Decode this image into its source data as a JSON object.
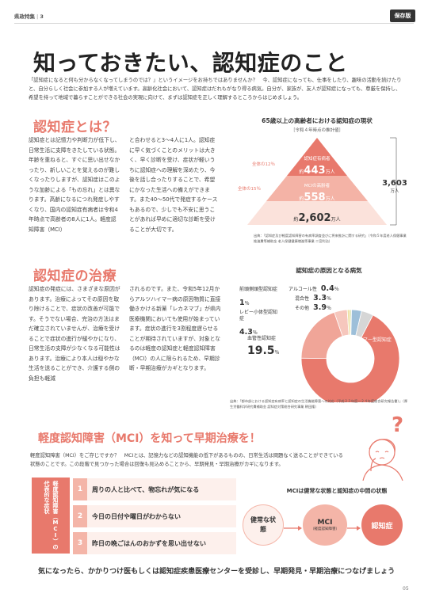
{
  "header": {
    "section": "県政特集",
    "number": "3",
    "badge": "保存版"
  },
  "title": "知っておきたい、認知症のこと",
  "intro": "「認知症になると何も分からなくなってしまうのでは？」というイメージをお持ちではありませんか？　今、認知症になっても、仕事をしたり、趣味の活動を続けたりと、自分らしく社会に参加する人が増えています。高齢化社会において、認知症はだれもがなり得る病気。自分が、家族が、友人が認知症になっても、尊厳を保持し、希望を持って地域で暮らすことができる社会の実現に向けて、まずは認知症を正しく理解するところからはじめましょう。",
  "what": {
    "heading": "認知症とは？",
    "col1": "認知症とは記憶力や判断力が低下し、日常生活に支障をきたしている状態。年齢を重ねると、すぐに思い出せなかったり、新しいことを覚えるのが難しくなったりしますが、認知症はこのような加齢による「もの忘れ」とは異なります。高齢になるにつれ発症しやすくなり、国内の認知症有病者は令和4年時点で高齢者の8人に1人。軽度認知障害（MCI）",
    "col2": "と合わせると3〜4人に1人。認知症に早く気づくことのメリットは大きく、早く診断を受け、症状が軽いうちに認知症への理解を深めたり、今後を話し合ったりすることで、希望にかなった生活への備えができます。また40〜50代で発症するケースもあるので、少しでも不安に思うことがあれば早めに適切な診断を受けることが大切です。"
  },
  "pyramid": {
    "title": "65歳以上の高齢者における認知症の現状",
    "subtitle": "［令和４年時点の推計値］",
    "top_pct": "全体の12％",
    "mid_pct": "全体の15％",
    "tier1_label": "認知症有病者",
    "tier1_pre": "約",
    "tier1_value": "443",
    "tier1_unit": "万人",
    "tier2_label": "MCIの高齢者",
    "tier2_pre": "約",
    "tier2_value": "558",
    "tier2_unit": "万人",
    "tier3_pre": "約",
    "tier3_value": "2,602",
    "tier3_unit": "万人",
    "total_value": "3,603",
    "total_unit": "万人",
    "source": "出典：「認知症及び軽度認知障害の有病率調査並びに将来推計に関する研究」（令和５年度老人保健事業推進費等補助金 老人保健健康増進等事業 二宮利治）"
  },
  "treatment": {
    "heading": "認知症の治療",
    "col1": "認知症の発症には、さまざまな原因があります。治療によってその原因を取り除けることで、症状の改善が可能です。そうでない場合、完治の方法はまだ確立されていませんが、治療を受けることで症状の進行が緩やかになり、日常生活の支障が少なくなる可能性はあります。治療により本人は穏やかな生活を送ることができ、介護する側の負担も軽減",
    "col2": "されるのです。また、令和5年12月からアルツハイマー病の原因物質に直接働きかける新薬「レカネマブ」が県内医療機関においても使用が始まっています。症状の進行を3割程度遅らせることが期待されていますが、対象となるのは軽度の認知症と軽度認知障害（MCI）の人に限られるため、早期診断・早期治療がカギとなります。"
  },
  "chart_data": {
    "type": "pie",
    "title": "認知症の原因となる病気",
    "categories": [
      "アルツハイマー型認知症",
      "血管性認知症",
      "レビー小体型認知症",
      "前頭側頭型認知症",
      "アルコール性",
      "混合性",
      "その他"
    ],
    "values": [
      67.6,
      19.5,
      4.3,
      1.0,
      0.4,
      3.3,
      3.9
    ],
    "unit": "％",
    "colors": [
      "#e8796c",
      "#f0a598",
      "#f6c7bd",
      "#efe3a9",
      "#c2d9a0",
      "#9dbfd9",
      "#d6d6d6"
    ],
    "source": "出典：「都市部における認知症有病率と認知症の生活機能障害への対応（平成２３年度〜２４年度総合研究報告書）」（厚生労働科学研究費補助金 認知症対策総合研究事業 朝田隆）"
  },
  "mci": {
    "heading": "軽度認知障害（MCI）を知って早期治療を！",
    "text": "軽度認知障害（MCI）をご存じですか？　MCIとは、記憶力などの認知機能の低下があるものの、日常生活は問題なく送ることができている状態のことです。この段階で見つかった場合は回復も見込めることから、早期発見・早期治療がカギになります。",
    "side_label": "軽度認知障害（MCI）の代表的な症状",
    "symptoms": [
      {
        "num": "1",
        "text": "周りの人と比べて、物忘れが気になる"
      },
      {
        "num": "2",
        "text": "今日の日付や曜日がわからない"
      },
      {
        "num": "3",
        "text": "昨日の晩ごはんのおかずを思い出せない"
      }
    ],
    "state_title": "MCIは健常な状態と認知症の中間の状態",
    "state_healthy": "健常な状態",
    "state_mci": "MCI",
    "state_mci_sub": "（軽度認知障害）",
    "state_dementia": "認知症",
    "question": "?"
  },
  "footer": "気になったら、かかりつけ医もしくは認知症疾患医療センターを受診し、早期発見・早期治療につなげましょう",
  "page_number": "05"
}
